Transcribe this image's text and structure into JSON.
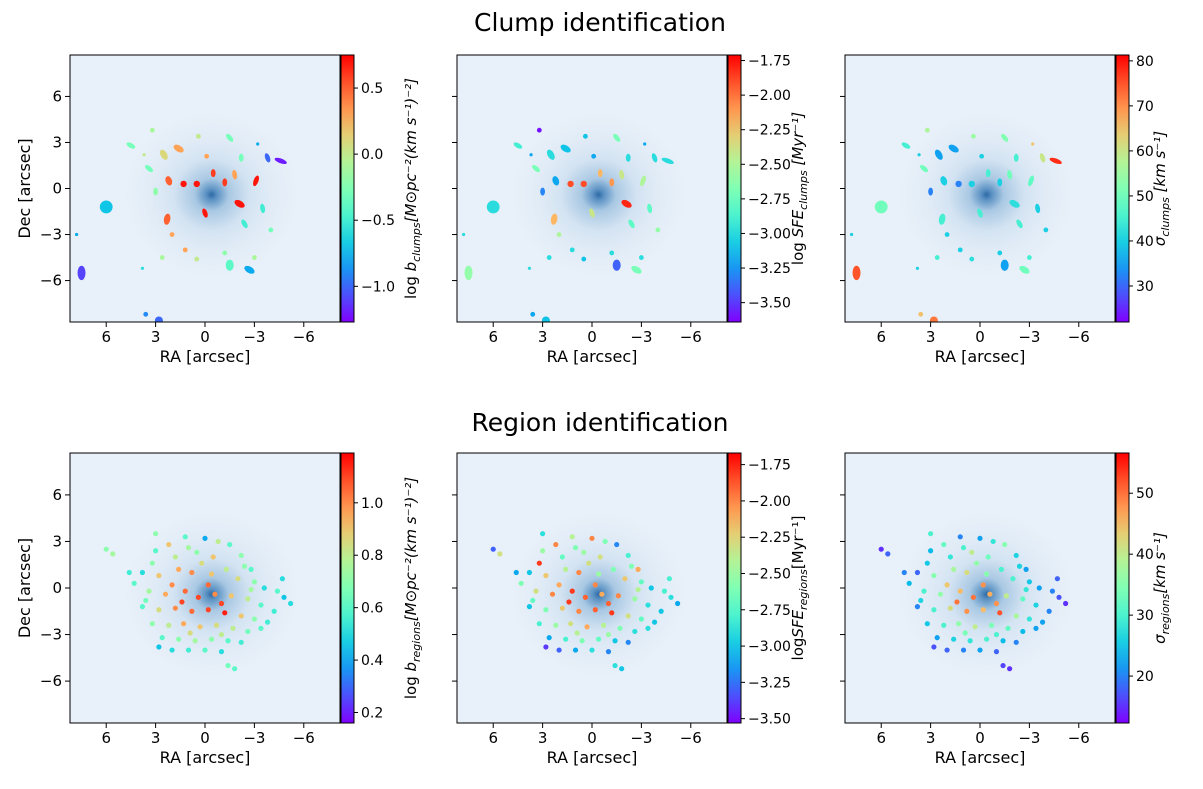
{
  "titles": {
    "top": "Clump identification",
    "bottom": "Region identification"
  },
  "chart_data": [
    {
      "type": "scatter",
      "subtype": "ellipses",
      "row": "top",
      "xlabel": "RA [arcsec]",
      "ylabel": "Dec [arcsec]",
      "xlim": [
        8.2,
        -8.2
      ],
      "ylim": [
        -8.7,
        8.7
      ],
      "xticks": [
        6,
        3,
        0,
        -3,
        -6
      ],
      "yticks": [
        6,
        3,
        0,
        -3,
        -6
      ],
      "show_yticklabels": true,
      "value_key": 0,
      "colormap": "rainbow",
      "clim": [
        -1.27,
        0.75
      ],
      "cbar_ticks": [
        "0.5",
        "0.0",
        "−0.5",
        "−1.0"
      ],
      "cbar_tick_values": [
        0.5,
        0.0,
        -0.5,
        -1.0
      ],
      "cbar_label": {
        "pre": "log ",
        "var": "b",
        "sub": "clumps",
        "post": "[M⊙pc⁻²(km s⁻¹)⁻²]"
      }
    },
    {
      "type": "scatter",
      "subtype": "ellipses",
      "row": "top",
      "xlabel": "RA [arcsec]",
      "ylabel": "",
      "xlim": [
        8.2,
        -8.2
      ],
      "ylim": [
        -8.7,
        8.7
      ],
      "xticks": [
        6,
        3,
        0,
        -3,
        -6
      ],
      "yticks": [
        6,
        3,
        0,
        -3,
        -6
      ],
      "show_yticklabels": false,
      "value_key": 1,
      "colormap": "rainbow",
      "clim": [
        -3.64,
        -1.71
      ],
      "cbar_ticks": [
        "−1.75",
        "−2.00",
        "−2.25",
        "−2.50",
        "−2.75",
        "−3.00",
        "−3.25",
        "−3.50"
      ],
      "cbar_tick_values": [
        -1.75,
        -2.0,
        -2.25,
        -2.5,
        -2.75,
        -3.0,
        -3.25,
        -3.5
      ],
      "cbar_label": {
        "pre": "log ",
        "var": "SFE",
        "sub": "clumps",
        "post": " [Myr⁻¹]"
      }
    },
    {
      "type": "scatter",
      "subtype": "ellipses",
      "row": "top",
      "xlabel": "RA [arcsec]",
      "ylabel": "",
      "xlim": [
        8.2,
        -8.2
      ],
      "ylim": [
        -8.7,
        8.7
      ],
      "xticks": [
        6,
        3,
        0,
        -3,
        -6
      ],
      "yticks": [
        6,
        3,
        0,
        -3,
        -6
      ],
      "show_yticklabels": false,
      "value_key": 2,
      "colormap": "rainbow",
      "clim": [
        22,
        81.3
      ],
      "cbar_ticks": [
        "80",
        "70",
        "60",
        "50",
        "40",
        "30"
      ],
      "cbar_tick_values": [
        80,
        70,
        60,
        50,
        40,
        30
      ],
      "cbar_label": {
        "pre": "",
        "var": "σ",
        "sub": "clumps",
        "post": " [km s⁻¹]"
      }
    },
    {
      "type": "scatter",
      "row": "bottom",
      "xlabel": "RA [arcsec]",
      "ylabel": "Dec [arcsec]",
      "xlim": [
        8.2,
        -8.2
      ],
      "ylim": [
        -8.7,
        8.7
      ],
      "xticks": [
        6,
        3,
        0,
        -3,
        -6
      ],
      "yticks": [
        6,
        3,
        0,
        -3,
        -6
      ],
      "show_yticklabels": true,
      "value_key": 0,
      "colormap": "rainbow",
      "clim": [
        0.16,
        1.19
      ],
      "cbar_ticks": [
        "1.0",
        "0.8",
        "0.6",
        "0.4",
        "0.2"
      ],
      "cbar_tick_values": [
        1.0,
        0.8,
        0.6,
        0.4,
        0.2
      ],
      "cbar_label": {
        "pre": "log ",
        "var": "b",
        "sub": "regions",
        "post": "[M⊙pc⁻²(km s⁻¹)⁻²]"
      }
    },
    {
      "type": "scatter",
      "row": "bottom",
      "xlabel": "RA [arcsec]",
      "ylabel": "",
      "xlim": [
        8.2,
        -8.2
      ],
      "ylim": [
        -8.7,
        8.7
      ],
      "xticks": [
        6,
        3,
        0,
        -3,
        -6
      ],
      "yticks": [
        6,
        3,
        0,
        -3,
        -6
      ],
      "show_yticklabels": false,
      "value_key": 1,
      "colormap": "rainbow",
      "clim": [
        -3.53,
        -1.67
      ],
      "cbar_ticks": [
        "−1.75",
        "−2.00",
        "−2.25",
        "−2.50",
        "−2.75",
        "−3.00",
        "−3.25",
        "−3.50"
      ],
      "cbar_tick_values": [
        -1.75,
        -2.0,
        -2.25,
        -2.5,
        -2.75,
        -3.0,
        -3.25,
        -3.5
      ],
      "cbar_label": {
        "pre": "log",
        "var": "SFE",
        "sub": "regions",
        "post": "[Myr⁻¹]"
      }
    },
    {
      "type": "scatter",
      "row": "bottom",
      "xlabel": "RA [arcsec]",
      "ylabel": "",
      "xlim": [
        8.2,
        -8.2
      ],
      "ylim": [
        -8.7,
        8.7
      ],
      "xticks": [
        6,
        3,
        0,
        -3,
        -6
      ],
      "yticks": [
        6,
        3,
        0,
        -3,
        -6
      ],
      "show_yticklabels": false,
      "value_key": 2,
      "colormap": "rainbow",
      "clim": [
        12.3,
        56.6
      ],
      "cbar_ticks": [
        "50",
        "40",
        "30",
        "20"
      ],
      "cbar_tick_values": [
        50,
        40,
        30,
        20
      ],
      "cbar_label": {
        "pre": "",
        "var": "σ",
        "sub": "regions",
        "post": "[km s⁻¹]"
      }
    }
  ],
  "clumps_columns": [
    "ra",
    "dec",
    "major",
    "minor",
    "pa",
    "log_b",
    "log_sfe",
    "sigma"
  ],
  "clumps": [
    [
      6,
      -1.2,
      0.8,
      0.8,
      0,
      -0.7,
      -3.0,
      50
    ],
    [
      7.5,
      -5.5,
      0.5,
      0.9,
      0,
      -1.1,
      -2.6,
      75
    ],
    [
      7.8,
      -3,
      0.2,
      0.2,
      0,
      -0.8,
      -3.0,
      40
    ],
    [
      3.6,
      -8.2,
      0.3,
      0.3,
      0,
      -0.9,
      -3.2,
      65
    ],
    [
      2.8,
      -8.6,
      0.5,
      0.5,
      0,
      -1.0,
      -3.1,
      72
    ],
    [
      4.5,
      2.8,
      0.3,
      0.6,
      60,
      -0.3,
      -2.9,
      45
    ],
    [
      3.2,
      3.8,
      0.3,
      0.3,
      0,
      -0.1,
      -3.6,
      57
    ],
    [
      3.7,
      2.2,
      0.2,
      0.2,
      0,
      0.0,
      -3.2,
      40
    ],
    [
      3.4,
      1.3,
      0.3,
      0.6,
      50,
      -0.3,
      -2.7,
      50
    ],
    [
      2.5,
      2.2,
      0.4,
      0.7,
      30,
      0.1,
      -3.0,
      35
    ],
    [
      1.6,
      2.6,
      0.4,
      0.7,
      60,
      0.3,
      -3.1,
      35
    ],
    [
      2.2,
      0.5,
      0.4,
      0.6,
      20,
      0.5,
      -3.2,
      40
    ],
    [
      3.0,
      -0.2,
      0.3,
      0.5,
      0,
      -0.2,
      -3.3,
      32
    ],
    [
      1.3,
      0.3,
      0.4,
      0.4,
      0,
      0.7,
      -1.9,
      32
    ],
    [
      0.5,
      0.3,
      0.4,
      0.4,
      0,
      0.7,
      -1.9,
      40
    ],
    [
      -0.5,
      1.0,
      0.3,
      0.5,
      0,
      0.6,
      -2.2,
      45
    ],
    [
      -1.2,
      0.4,
      0.3,
      0.5,
      0,
      0.6,
      -2.1,
      40
    ],
    [
      -2.1,
      -1.0,
      0.4,
      0.7,
      60,
      0.7,
      -1.8,
      42
    ],
    [
      -1.8,
      0.9,
      0.3,
      0.6,
      10,
      0.3,
      -2.4,
      50
    ],
    [
      -3.1,
      0.5,
      0.3,
      0.7,
      -20,
      0.7,
      -2.5,
      48
    ],
    [
      -2.2,
      2.0,
      0.3,
      0.5,
      0,
      -0.3,
      -3.0,
      45
    ],
    [
      -1.5,
      3.3,
      0.3,
      0.6,
      40,
      -0.3,
      -2.7,
      52
    ],
    [
      0.4,
      3.4,
      0.3,
      0.3,
      0,
      0.0,
      -3.1,
      55
    ],
    [
      -0.1,
      2.1,
      0.3,
      0.3,
      0,
      0.3,
      -3.2,
      40
    ],
    [
      -3.8,
      2.0,
      0.3,
      0.6,
      20,
      -1.0,
      -3.0,
      60
    ],
    [
      -3.2,
      2.9,
      0.2,
      0.2,
      0,
      -0.8,
      -3.2,
      65
    ],
    [
      -4.6,
      1.8,
      0.3,
      0.8,
      70,
      -1.2,
      -3.0,
      78
    ],
    [
      -3.5,
      -1.3,
      0.3,
      0.6,
      10,
      -0.5,
      -2.8,
      40
    ],
    [
      -2.4,
      -2.3,
      0.3,
      0.6,
      30,
      -0.5,
      -2.8,
      45
    ],
    [
      -4.0,
      -2.7,
      0.3,
      0.3,
      0,
      -0.3,
      -2.6,
      40
    ],
    [
      2.3,
      -2.0,
      0.4,
      0.7,
      -10,
      0.5,
      -2.2,
      45
    ],
    [
      2.0,
      -3.0,
      0.3,
      0.3,
      0,
      0.3,
      -2.5,
      40
    ],
    [
      2.6,
      -4.5,
      0.3,
      0.3,
      0,
      -0.1,
      -3.0,
      45
    ],
    [
      1.2,
      -4.0,
      0.3,
      0.3,
      0,
      0.3,
      -3.0,
      40
    ],
    [
      0.5,
      -4.6,
      0.3,
      0.3,
      0,
      0.0,
      -3.1,
      42
    ],
    [
      -1.2,
      -4.2,
      0.3,
      0.3,
      0,
      -0.2,
      -3.0,
      40
    ],
    [
      -1.5,
      -5.0,
      0.5,
      0.7,
      0,
      -0.4,
      -3.4,
      35
    ],
    [
      -2.7,
      -5.3,
      0.4,
      0.7,
      60,
      -0.8,
      -2.7,
      50
    ],
    [
      -3.0,
      -4.5,
      0.3,
      0.3,
      0,
      -0.1,
      -3.0,
      45
    ],
    [
      3.8,
      -5.2,
      0.2,
      0.2,
      0,
      -0.6,
      -3.0,
      40
    ],
    [
      0.0,
      -1.6,
      0.3,
      0.6,
      20,
      0.7,
      -2.4,
      45
    ]
  ],
  "regions_columns": [
    "ra",
    "dec",
    "log_b",
    "log_sfe",
    "sigma"
  ],
  "regions": [
    [
      6.0,
      2.5,
      0.7,
      -3.3,
      15
    ],
    [
      5.6,
      2.2,
      0.75,
      -2.3,
      18
    ],
    [
      3.0,
      3.5,
      0.7,
      -2.9,
      30
    ],
    [
      1.2,
      3.3,
      0.6,
      -2.4,
      20
    ],
    [
      0.0,
      3.2,
      0.4,
      -2.0,
      22
    ],
    [
      -0.8,
      3.0,
      0.8,
      -2.6,
      28
    ],
    [
      -1.5,
      2.8,
      0.6,
      -3.2,
      35
    ],
    [
      2.2,
      2.8,
      0.9,
      -2.0,
      32
    ],
    [
      1.8,
      2.0,
      0.8,
      -2.7,
      28
    ],
    [
      0.5,
      2.3,
      0.7,
      -2.5,
      40
    ],
    [
      -0.5,
      2.0,
      0.9,
      -2.3,
      33
    ],
    [
      -2.2,
      2.1,
      0.7,
      -2.8,
      26
    ],
    [
      -2.8,
      1.2,
      0.6,
      -2.1,
      22
    ],
    [
      3.2,
      1.6,
      0.7,
      -1.8,
      25
    ],
    [
      3.8,
      1.0,
      0.5,
      -3.0,
      18
    ],
    [
      4.6,
      1.0,
      0.55,
      -3.1,
      20
    ],
    [
      4.3,
      0.3,
      0.6,
      -2.6,
      24
    ],
    [
      2.8,
      0.8,
      0.9,
      -2.2,
      35
    ],
    [
      1.6,
      1.2,
      0.95,
      -2.4,
      38
    ],
    [
      0.8,
      1.0,
      1.0,
      -2.0,
      42
    ],
    [
      -0.4,
      0.9,
      0.9,
      -2.5,
      35
    ],
    [
      -1.3,
      1.2,
      0.8,
      -2.6,
      30
    ],
    [
      -2.0,
      0.6,
      0.85,
      -2.2,
      30
    ],
    [
      -3.0,
      0.4,
      0.7,
      -2.7,
      25
    ],
    [
      -3.6,
      0.0,
      0.5,
      -3.0,
      22
    ],
    [
      -4.4,
      -0.2,
      0.6,
      -2.8,
      20
    ],
    [
      -4.8,
      -0.6,
      0.45,
      -2.9,
      17
    ],
    [
      -5.2,
      -1.0,
      0.5,
      -3.1,
      15
    ],
    [
      -4.7,
      0.6,
      0.5,
      -2.8,
      18
    ],
    [
      3.4,
      -0.2,
      0.75,
      -2.3,
      30
    ],
    [
      2.4,
      -0.4,
      0.95,
      -2.0,
      36
    ],
    [
      1.2,
      -0.2,
      1.05,
      -1.8,
      45
    ],
    [
      0.4,
      -0.6,
      1.1,
      -1.9,
      50
    ],
    [
      -0.6,
      -0.4,
      1.0,
      -2.1,
      46
    ],
    [
      -1.6,
      -0.5,
      0.9,
      -2.0,
      40
    ],
    [
      -2.6,
      -0.7,
      0.8,
      -2.5,
      32
    ],
    [
      -3.4,
      -1.1,
      0.6,
      -2.9,
      26
    ],
    [
      3.8,
      -1.2,
      0.6,
      -3.0,
      20
    ],
    [
      2.8,
      -1.4,
      0.85,
      -2.6,
      30
    ],
    [
      1.8,
      -1.3,
      1.0,
      -2.2,
      42
    ],
    [
      0.8,
      -1.5,
      1.05,
      -2.0,
      48
    ],
    [
      -0.2,
      -1.4,
      1.1,
      -1.9,
      45
    ],
    [
      -1.2,
      -1.6,
      1.15,
      -1.8,
      52
    ],
    [
      -2.2,
      -1.8,
      0.9,
      -2.3,
      38
    ],
    [
      -3.0,
      -2.0,
      0.7,
      -2.7,
      28
    ],
    [
      -3.8,
      -2.2,
      0.55,
      -3.0,
      22
    ],
    [
      3.2,
      -2.3,
      0.7,
      -2.8,
      25
    ],
    [
      2.2,
      -2.4,
      0.8,
      -2.5,
      30
    ],
    [
      1.3,
      -2.3,
      0.95,
      -2.3,
      36
    ],
    [
      0.3,
      -2.5,
      0.9,
      -2.1,
      40
    ],
    [
      -0.7,
      -2.4,
      0.85,
      -2.4,
      34
    ],
    [
      -1.7,
      -2.6,
      0.8,
      -2.6,
      32
    ],
    [
      -2.6,
      -2.8,
      0.65,
      -2.9,
      24
    ],
    [
      2.6,
      -3.2,
      0.6,
      -3.1,
      22
    ],
    [
      1.6,
      -3.3,
      0.7,
      -2.8,
      26
    ],
    [
      0.6,
      -3.4,
      0.75,
      -2.6,
      28
    ],
    [
      -0.4,
      -3.3,
      0.7,
      -2.7,
      30
    ],
    [
      -1.4,
      -3.4,
      0.6,
      -3.0,
      24
    ],
    [
      -2.2,
      -3.5,
      0.55,
      -3.2,
      20
    ],
    [
      2.0,
      -4.0,
      0.5,
      -3.3,
      18
    ],
    [
      1.0,
      -4.0,
      0.55,
      -3.1,
      20
    ],
    [
      0.0,
      -4.0,
      0.6,
      -2.9,
      22
    ],
    [
      -1.0,
      -4.1,
      0.5,
      -3.2,
      18
    ],
    [
      -1.4,
      -5.0,
      0.65,
      -2.9,
      16
    ],
    [
      -1.8,
      -5.2,
      0.6,
      -3.0,
      15
    ],
    [
      2.8,
      -3.8,
      0.45,
      -3.4,
      17
    ],
    [
      3.6,
      -0.8,
      0.65,
      -2.7,
      26
    ],
    [
      -2.8,
      -0.1,
      0.75,
      -2.4,
      28
    ],
    [
      0.2,
      1.6,
      0.85,
      -2.3,
      36
    ],
    [
      1.0,
      2.6,
      0.75,
      -2.6,
      30
    ],
    [
      -1.0,
      -3.0,
      0.8,
      -2.5,
      30
    ],
    [
      2.0,
      0.2,
      1.0,
      -2.1,
      44
    ],
    [
      -0.2,
      0.2,
      1.05,
      -2.0,
      48
    ],
    [
      1.4,
      -0.9,
      1.1,
      -1.8,
      50
    ],
    [
      -1.0,
      -1.0,
      1.1,
      -1.9,
      48
    ],
    [
      -2.4,
      1.4,
      0.7,
      -2.6,
      26
    ],
    [
      3.0,
      2.4,
      0.6,
      -2.5,
      24
    ],
    [
      -3.4,
      -2.6,
      0.6,
      -2.9,
      22
    ],
    [
      0.9,
      -2.9,
      0.85,
      -2.4,
      34
    ],
    [
      -4.2,
      -1.5,
      0.55,
      -3.0,
      20
    ]
  ]
}
